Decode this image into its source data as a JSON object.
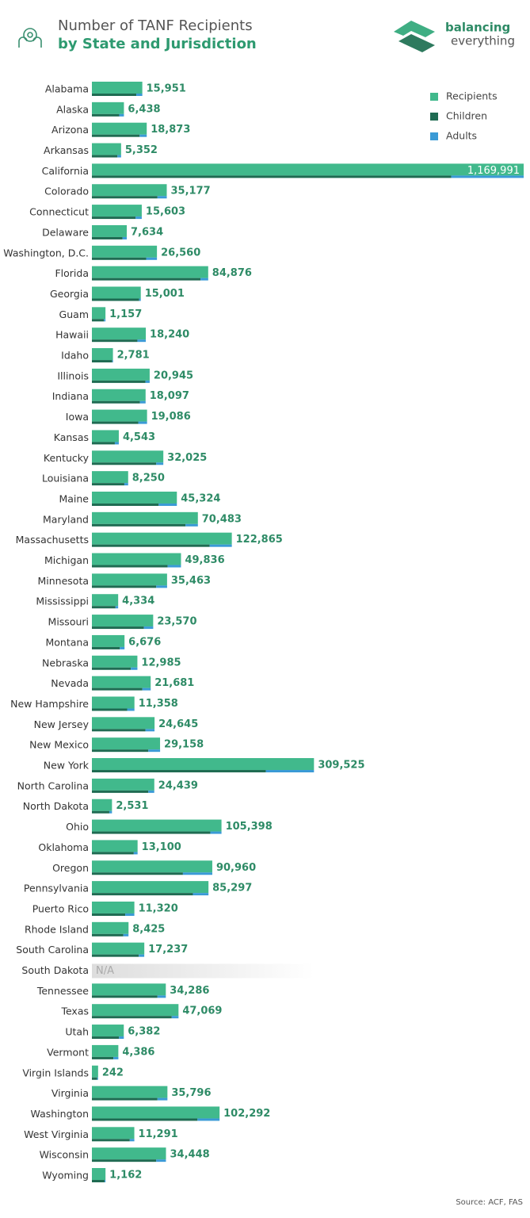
{
  "chart_data": {
    "type": "bar",
    "orientation": "horizontal",
    "title": "Number of TANF Recipients",
    "subtitle": "by State and Jurisdiction",
    "brand": [
      "balancing",
      "everything"
    ],
    "source": "Source: ACF, FAS",
    "xscale": "sqrt",
    "xlim": [
      0,
      1169991
    ],
    "categories": [
      "Alabama",
      "Alaska",
      "Arizona",
      "Arkansas",
      "California",
      "Colorado",
      "Connecticut",
      "Delaware",
      "Washington, D.C.",
      "Florida",
      "Georgia",
      "Guam",
      "Hawaii",
      "Idaho",
      "Illinois",
      "Indiana",
      "Iowa",
      "Kansas",
      "Kentucky",
      "Louisiana",
      "Maine",
      "Maryland",
      "Massachusetts",
      "Michigan",
      "Minnesota",
      "Mississippi",
      "Missouri",
      "Montana",
      "Nebraska",
      "Nevada",
      "New Hampshire",
      "New Jersey",
      "New Mexico",
      "New York",
      "North Carolina",
      "North Dakota",
      "Ohio",
      "Oklahoma",
      "Oregon",
      "Pennsylvania",
      "Puerto Rico",
      "Rhode Island",
      "South Carolina",
      "South Dakota",
      "Tennessee",
      "Texas",
      "Utah",
      "Vermont",
      "Virgin Islands",
      "Virginia",
      "Washington",
      "West Virginia",
      "Wisconsin",
      "Wyoming"
    ],
    "series": [
      {
        "name": "Recipients",
        "color": "#41b98c",
        "values": [
          15951,
          6438,
          18873,
          5352,
          1169991,
          35177,
          15603,
          7634,
          26560,
          84876,
          15001,
          1157,
          18240,
          2781,
          20945,
          18097,
          19086,
          4543,
          32025,
          8250,
          45324,
          70483,
          122865,
          49836,
          35463,
          4334,
          23570,
          6676,
          12985,
          21681,
          11358,
          24645,
          29158,
          309525,
          24439,
          2531,
          105398,
          13100,
          90960,
          85297,
          11320,
          8425,
          17237,
          null,
          34286,
          47069,
          6382,
          4386,
          242,
          35796,
          102292,
          11291,
          34448,
          1162
        ],
        "value_labels": [
          "15,951",
          "6,438",
          "18,873",
          "5,352",
          "1,169,991",
          "35,177",
          "15,603",
          "7,634",
          "26,560",
          "84,876",
          "15,001",
          "1,157",
          "18,240",
          "2,781",
          "20,945",
          "18,097",
          "19,086",
          "4,543",
          "32,025",
          "8,250",
          "45,324",
          "70,483",
          "122,865",
          "49,836",
          "35,463",
          "4,334",
          "23,570",
          "6,676",
          "12,985",
          "21,681",
          "11,358",
          "24,645",
          "29,158",
          "309,525",
          "24,439",
          "2,531",
          "105,398",
          "13,100",
          "90,960",
          "85,297",
          "11,320",
          "8,425",
          "17,237",
          "N/A",
          "34,286",
          "47,069",
          "6,382",
          "4,386",
          "242",
          "35,796",
          "102,292",
          "11,291",
          "34,448",
          "1,162"
        ]
      },
      {
        "name": "Children",
        "color": "#1f6b52",
        "values": [
          12400,
          4700,
          14300,
          4100,
          810000,
          27000,
          12000,
          5900,
          18500,
          74000,
          14000,
          900,
          13000,
          2600,
          18000,
          14500,
          13500,
          3300,
          26000,
          6600,
          28000,
          55000,
          87000,
          36000,
          26000,
          3500,
          17000,
          4900,
          9500,
          16000,
          7800,
          18000,
          20000,
          190000,
          20000,
          1900,
          88000,
          11000,
          52000,
          64000,
          7000,
          6200,
          13800,
          null,
          27000,
          40000,
          4600,
          2900,
          170,
          27000,
          70000,
          9000,
          26000,
          1000
        ]
      },
      {
        "name": "Adults",
        "color": "#3a9ad6",
        "values": [
          3550,
          1740,
          4570,
          1250,
          360000,
          8200,
          3600,
          1730,
          8060,
          10900,
          1000,
          257,
          5240,
          180,
          2950,
          3600,
          5600,
          1240,
          6000,
          1650,
          17300,
          15500,
          35900,
          13800,
          9500,
          830,
          6600,
          1780,
          3500,
          5700,
          3560,
          6600,
          9200,
          119500,
          4400,
          630,
          17400,
          2100,
          39000,
          21300,
          4300,
          2200,
          3400,
          null,
          7300,
          7100,
          1800,
          1500,
          70,
          8800,
          32300,
          2300,
          8400,
          160
        ]
      }
    ]
  }
}
